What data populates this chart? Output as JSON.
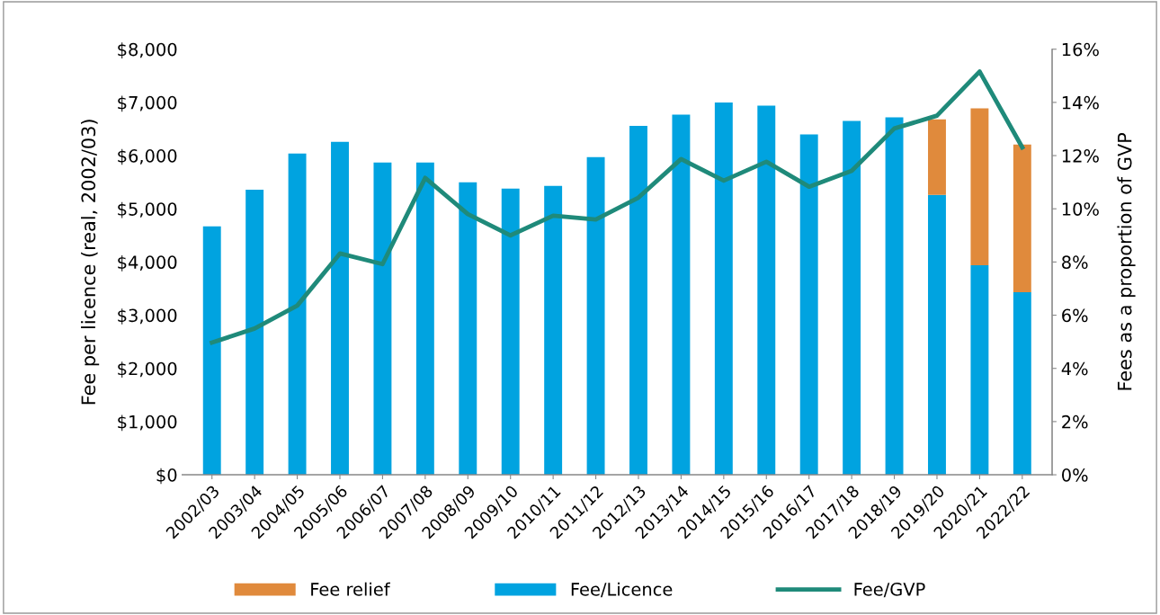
{
  "chart_data": {
    "type": "bar",
    "stacked": true,
    "ylabel": "Fee per licence (real, 2002/03)",
    "y2label": "Fees as a proportion of GVP",
    "categories": [
      "2002/03",
      "2003/04",
      "2004/05",
      "2005/06",
      "2006/07",
      "2007/08",
      "2008/09",
      "2009/10",
      "2010/11",
      "2011/12",
      "2012/13",
      "2013/14",
      "2014/15",
      "2015/16",
      "2016/17",
      "2017/18",
      "2018/19",
      "2019/20",
      "2020/21",
      "2022/22"
    ],
    "series": [
      {
        "name": "Fee/Licence",
        "color": "#00a3e0",
        "values": [
          4670,
          5360,
          6040,
          6260,
          5870,
          5870,
          5500,
          5380,
          5430,
          5970,
          6560,
          6770,
          7000,
          6940,
          6400,
          6650,
          6720,
          5260,
          3940,
          3430
        ]
      },
      {
        "name": "Fee relief",
        "color": "#e08a3c",
        "values": [
          null,
          null,
          null,
          null,
          null,
          null,
          null,
          null,
          null,
          null,
          null,
          null,
          null,
          null,
          null,
          null,
          null,
          1420,
          2950,
          2780
        ]
      },
      {
        "name": "Fee/GVP",
        "type": "line",
        "axis": "y2",
        "color": "#1f8a7a",
        "marker": "none",
        "values": [
          4.97,
          5.5,
          6.36,
          8.32,
          7.92,
          11.16,
          9.8,
          9.0,
          9.74,
          9.6,
          10.42,
          11.87,
          11.06,
          11.77,
          10.83,
          11.43,
          13.02,
          13.5,
          15.16,
          12.31
        ]
      }
    ],
    "ylim": [
      0,
      8000
    ],
    "yticks": [
      {
        "value": 0,
        "label": "$0"
      },
      {
        "value": 1000,
        "label": "$1,000"
      },
      {
        "value": 2000,
        "label": "$2,000"
      },
      {
        "value": 3000,
        "label": "$3,000"
      },
      {
        "value": 4000,
        "label": "$4,000"
      },
      {
        "value": 5000,
        "label": "$5,000"
      },
      {
        "value": 6000,
        "label": "$6,000"
      },
      {
        "value": 7000,
        "label": "$7,000"
      },
      {
        "value": 8000,
        "label": "$8,000"
      }
    ],
    "y2lim": [
      0,
      16
    ],
    "y2ticks": [
      {
        "value": 0,
        "label": "0%"
      },
      {
        "value": 2,
        "label": "2%"
      },
      {
        "value": 4,
        "label": "4%"
      },
      {
        "value": 6,
        "label": "6%"
      },
      {
        "value": 8,
        "label": "8%"
      },
      {
        "value": 10,
        "label": "10%"
      },
      {
        "value": 12,
        "label": "12%"
      },
      {
        "value": 14,
        "label": "14%"
      },
      {
        "value": 16,
        "label": "16%"
      }
    ],
    "grid": false,
    "legend": "bottom"
  }
}
